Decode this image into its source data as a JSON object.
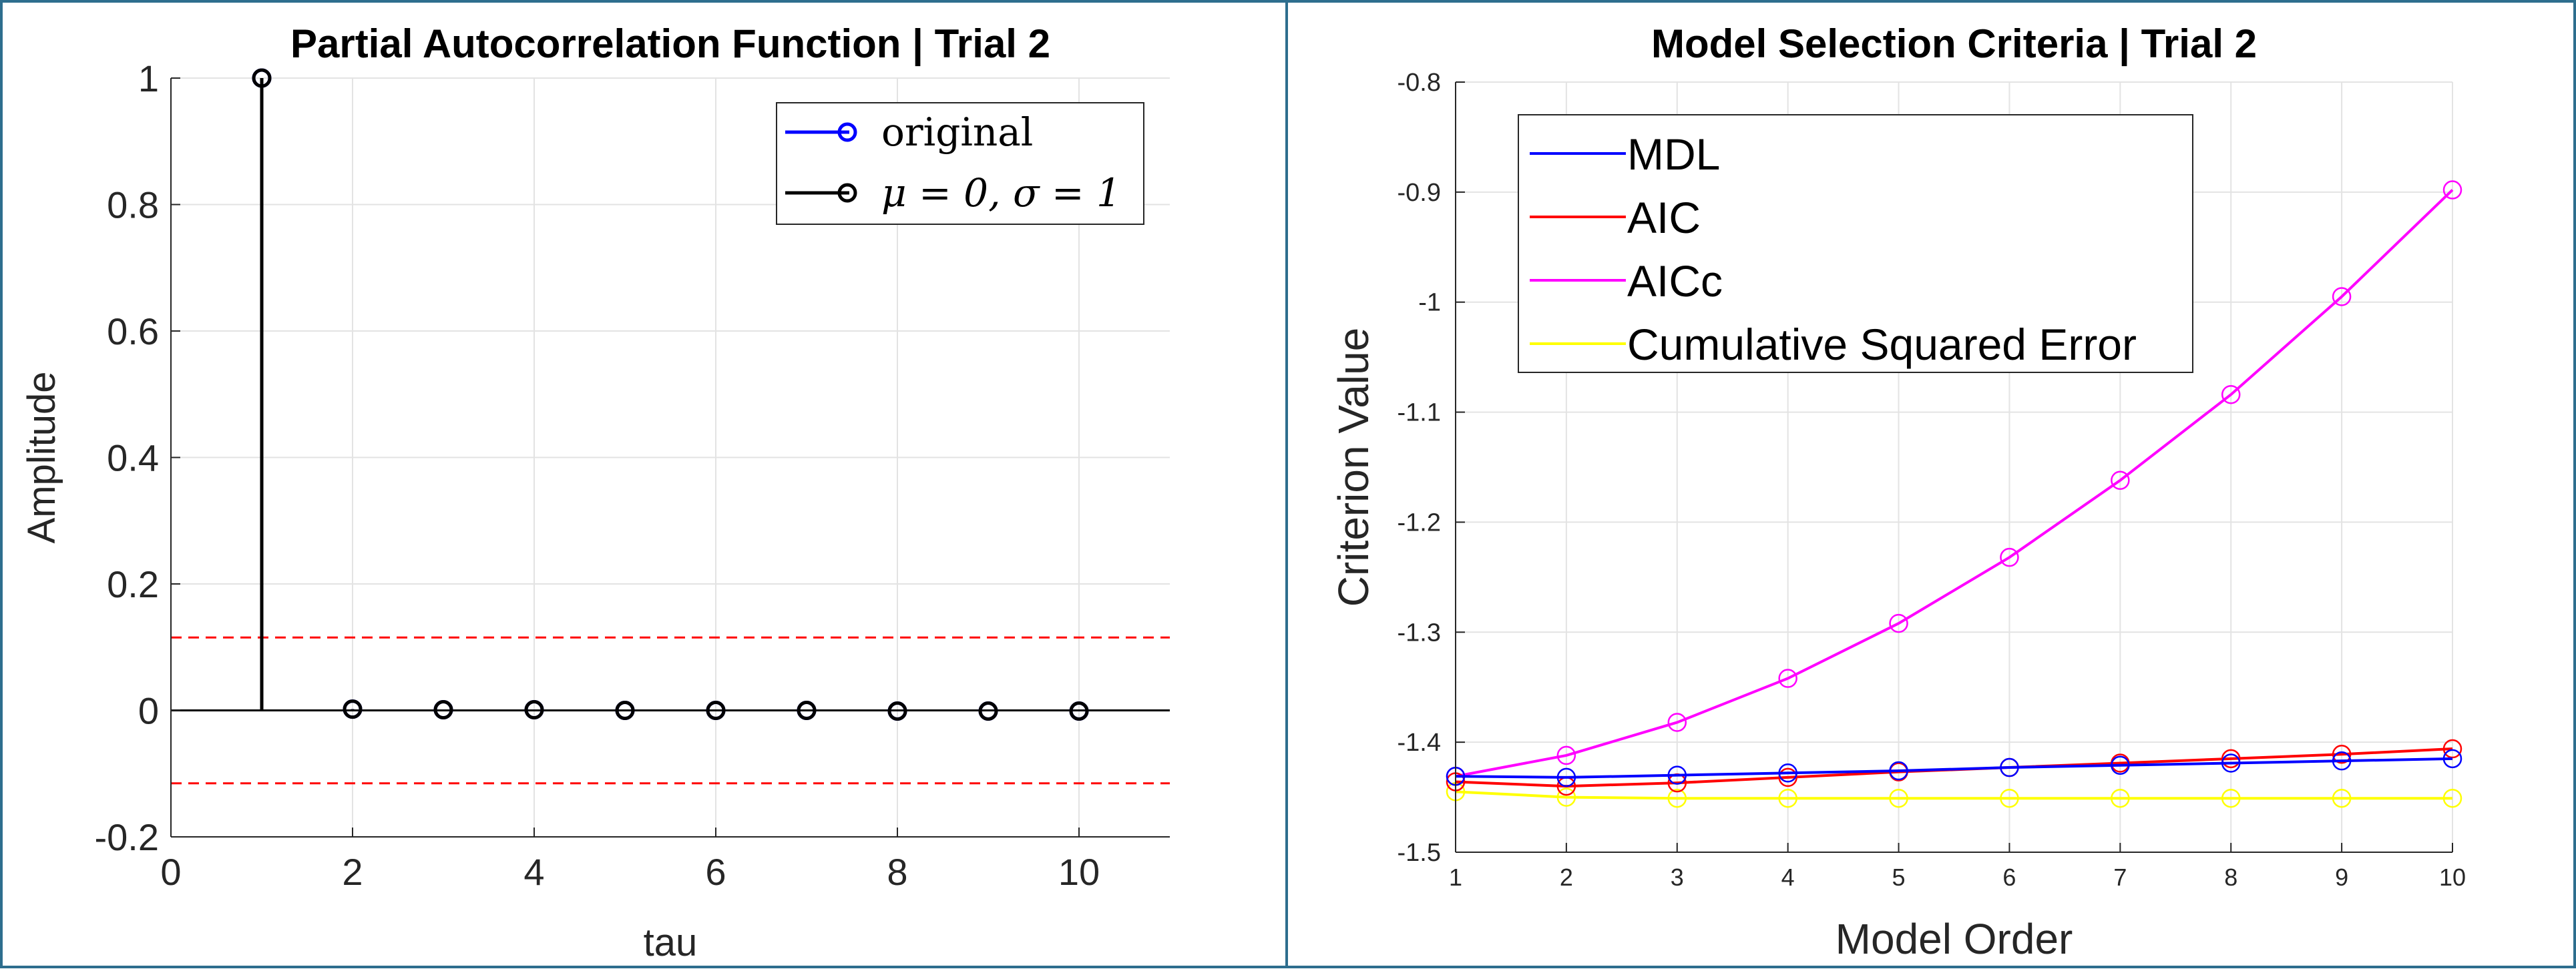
{
  "chart_data": [
    {
      "type": "stem",
      "title": "Partial Autocorrelation Function | Trial 2",
      "xlabel": "tau",
      "ylabel": "Amplitude",
      "xlim": [
        0,
        11
      ],
      "ylim": [
        -0.2,
        1
      ],
      "xticks": [
        0,
        2,
        4,
        6,
        8,
        10
      ],
      "yticks": [
        -0.2,
        0,
        0.2,
        0.4,
        0.6,
        0.8,
        1
      ],
      "grid": true,
      "legend_position": "top-right",
      "confidence_bounds": [
        0.1153,
        -0.1153
      ],
      "series": [
        {
          "name": "original",
          "color": "#0000ff",
          "x": [
            1,
            2,
            3,
            4,
            5,
            6,
            7,
            8,
            9,
            10
          ],
          "y": [
            1,
            0.002,
            0.001,
            0.001,
            0.0,
            0.0,
            0.0,
            -0.001,
            -0.001,
            -0.001
          ]
        },
        {
          "name": "μ = 0, σ = 1",
          "color": "#000000",
          "x": [
            1,
            2,
            3,
            4,
            5,
            6,
            7,
            8,
            9,
            10
          ],
          "y": [
            1,
            0.002,
            0.001,
            0.001,
            0.0,
            0.0,
            0.0,
            -0.001,
            -0.001,
            -0.001
          ]
        }
      ]
    },
    {
      "type": "line",
      "title": "Model Selection Criteria | Trial 2",
      "xlabel": "Model Order",
      "ylabel": "Criterion Value",
      "xlim": [
        1,
        10
      ],
      "ylim": [
        -1.5,
        -0.8
      ],
      "xticks": [
        1,
        2,
        3,
        4,
        5,
        6,
        7,
        8,
        9,
        10
      ],
      "yticks": [
        -1.5,
        -1.4,
        -1.3,
        -1.2,
        -1.1,
        -1,
        -0.9,
        -0.8
      ],
      "grid": true,
      "legend_position": "top-left",
      "x": [
        1,
        2,
        3,
        4,
        5,
        6,
        7,
        8,
        9,
        10
      ],
      "series": [
        {
          "name": "MDL",
          "color": "#0000ff",
          "values": [
            -1.431,
            -1.432,
            -1.43,
            -1.428,
            -1.426,
            -1.423,
            -1.421,
            -1.419,
            -1.417,
            -1.415
          ]
        },
        {
          "name": "AIC",
          "color": "#ff0000",
          "values": [
            -1.436,
            -1.44,
            -1.437,
            -1.432,
            -1.427,
            -1.423,
            -1.419,
            -1.415,
            -1.411,
            -1.406
          ]
        },
        {
          "name": "AICc",
          "color": "#ff00ff",
          "values": [
            -1.431,
            -1.412,
            -1.382,
            -1.342,
            -1.292,
            -1.232,
            -1.162,
            -1.084,
            -0.995,
            -0.898
          ]
        },
        {
          "name": "Cumulative Squared Error",
          "color": "#ffff00",
          "values": [
            -1.445,
            -1.45,
            -1.451,
            -1.451,
            -1.451,
            -1.451,
            -1.451,
            -1.451,
            -1.451,
            -1.451
          ]
        }
      ]
    }
  ]
}
